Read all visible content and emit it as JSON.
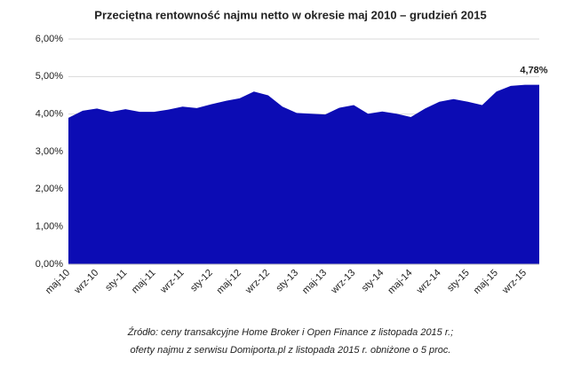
{
  "chart_data": {
    "type": "area",
    "title": "Przeciętna rentowność najmu netto w okresie maj 2010 – grudzień 2015",
    "categories": [
      "maj-10",
      null,
      "wrz-10",
      null,
      "sty-11",
      null,
      "maj-11",
      null,
      "wrz-11",
      null,
      "sty-12",
      null,
      "maj-12",
      null,
      "wrz-12",
      null,
      "sty-13",
      null,
      "maj-13",
      null,
      "wrz-13",
      null,
      "sty-14",
      null,
      "maj-14",
      null,
      "wrz-14",
      null,
      "sty-15",
      null,
      "maj-15",
      null,
      "wrz-15",
      null
    ],
    "values": [
      3.9,
      4.09,
      4.15,
      4.06,
      4.13,
      4.06,
      4.06,
      4.12,
      4.2,
      4.16,
      4.26,
      4.35,
      4.42,
      4.6,
      4.5,
      4.2,
      4.03,
      4.01,
      3.99,
      4.17,
      4.24,
      4.01,
      4.07,
      4.01,
      3.92,
      4.15,
      4.33,
      4.4,
      4.33,
      4.24,
      4.6,
      4.75,
      4.78,
      4.78
    ],
    "value_labels": [
      null,
      null,
      null,
      null,
      null,
      null,
      null,
      null,
      null,
      null,
      null,
      null,
      null,
      null,
      null,
      null,
      null,
      null,
      null,
      null,
      null,
      null,
      null,
      null,
      null,
      null,
      null,
      null,
      null,
      null,
      null,
      null,
      null,
      "4,78%"
    ],
    "color": "#0c0cb4",
    "ylim": [
      0,
      6
    ],
    "yticks": [
      {
        "value": 0,
        "label": "0,00%"
      },
      {
        "value": 1,
        "label": "1,00%"
      },
      {
        "value": 2,
        "label": "2,00%"
      },
      {
        "value": 3,
        "label": "3,00%"
      },
      {
        "value": 4,
        "label": "4,00%"
      },
      {
        "value": 5,
        "label": "5,00%"
      },
      {
        "value": 6,
        "label": "6,00%"
      }
    ],
    "grid": true,
    "source": [
      "Źródło: ceny transakcyjne Home Broker i Open Finance z listopada 2015 r.;",
      "oferty najmu z serwisu Domiporta.pl z listopada 2015 r. obniżone o 5 proc."
    ]
  }
}
